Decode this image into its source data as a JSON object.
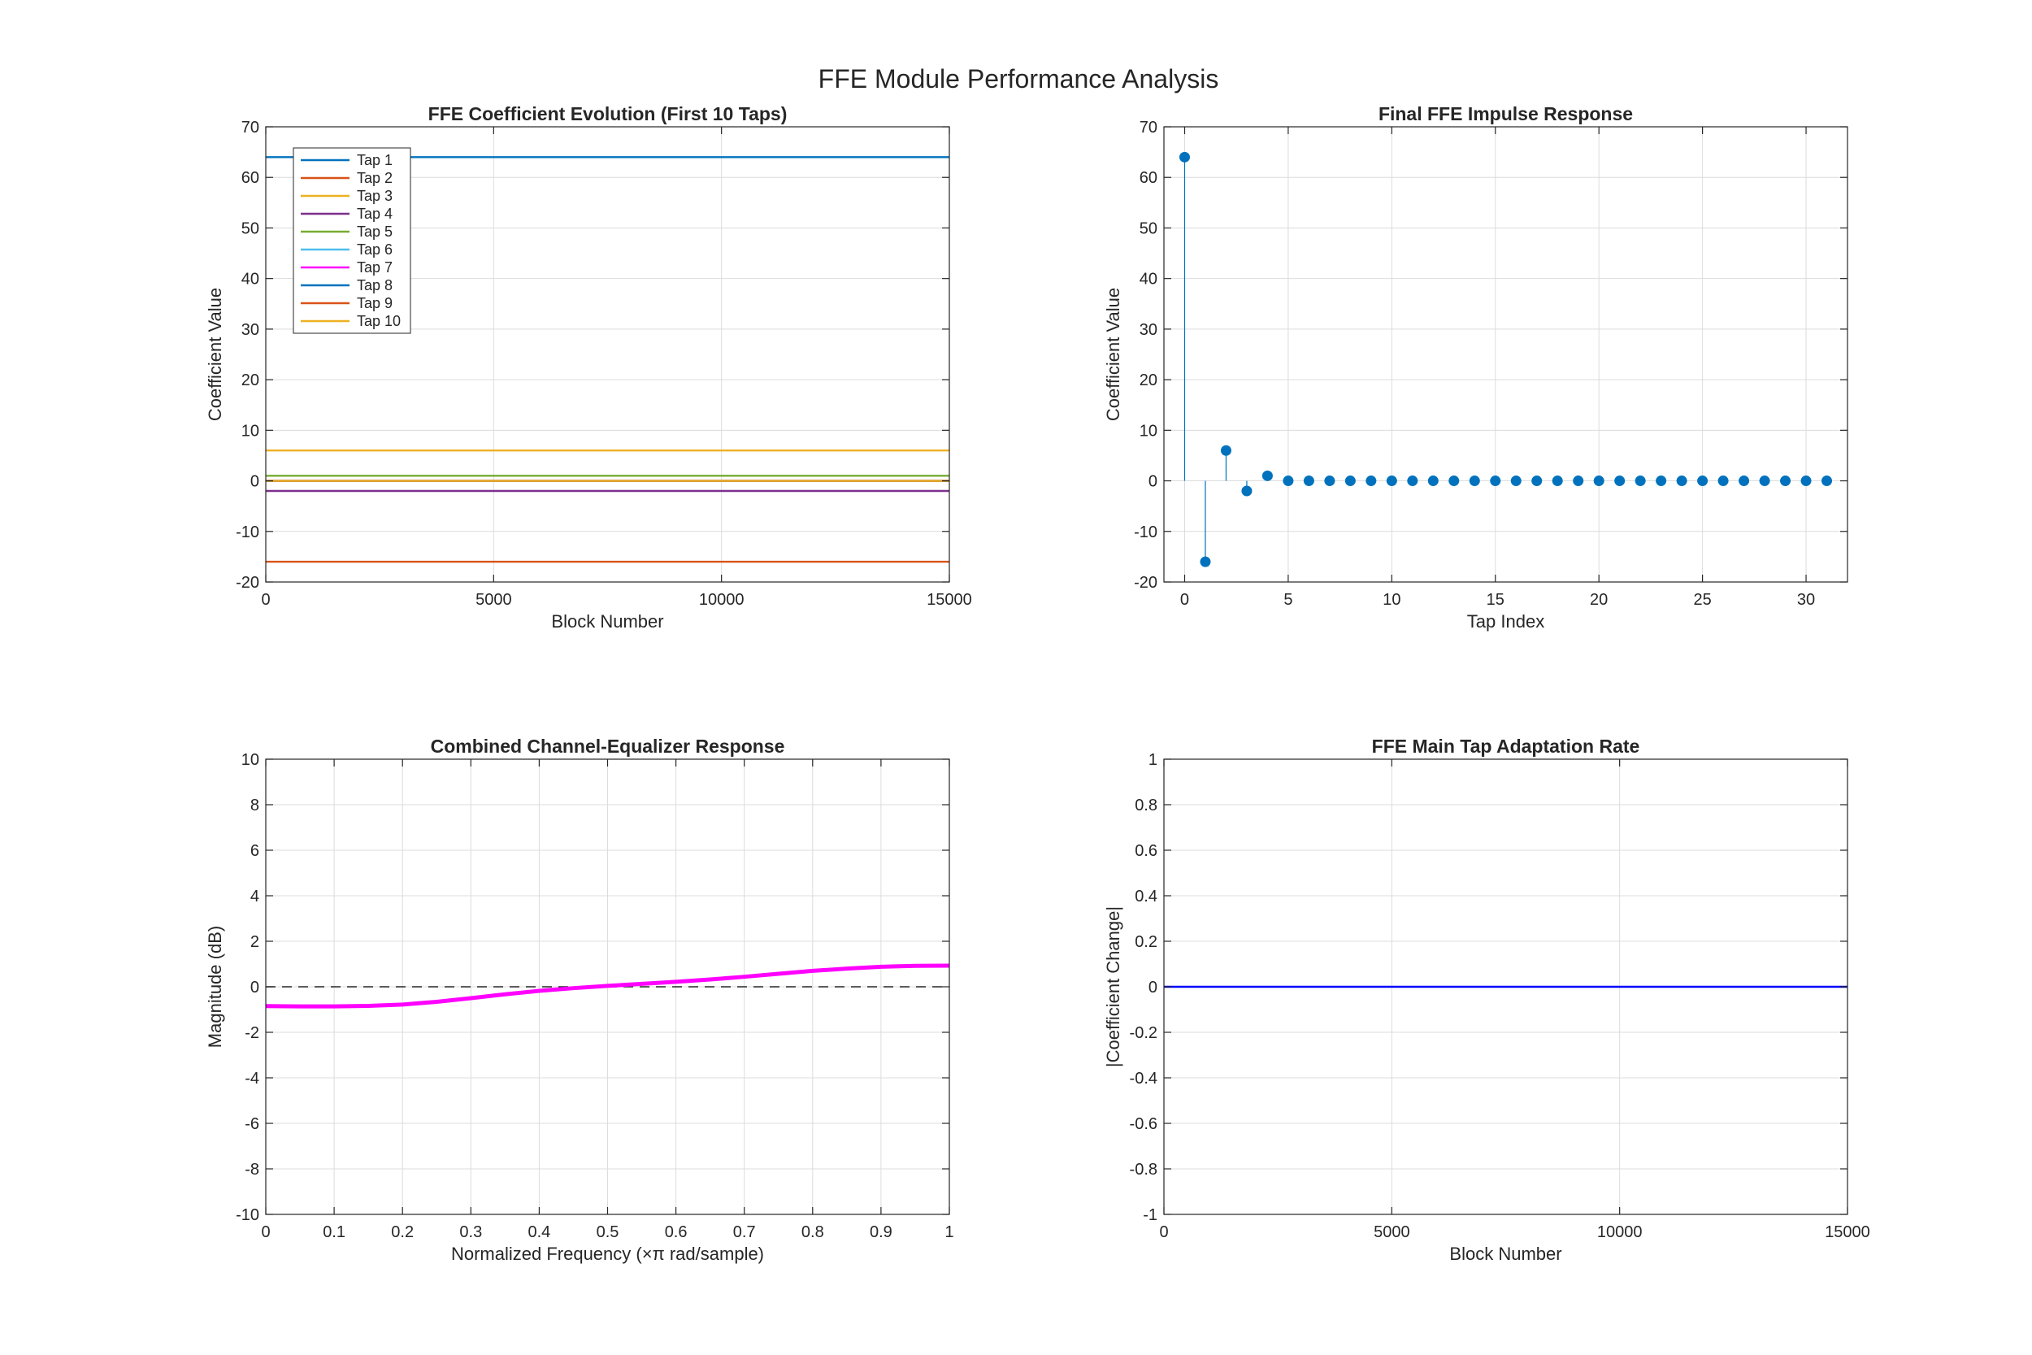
{
  "figure": {
    "title": "FFE Module Performance Analysis"
  },
  "chart_data": [
    {
      "id": "coef-evolution",
      "type": "line",
      "title": "FFE Coefficient Evolution (First 10 Taps)",
      "xlabel": "Block Number",
      "ylabel": "Coefficient Value",
      "xlim": [
        0,
        15000
      ],
      "ylim": [
        -20,
        70
      ],
      "xticks": [
        0,
        5000,
        10000,
        15000
      ],
      "yticks": [
        -20,
        -10,
        0,
        10,
        20,
        30,
        40,
        50,
        60,
        70
      ],
      "grid": true,
      "legend": "top-left",
      "series": [
        {
          "name": "Tap 1",
          "color": "#0072BD",
          "x": [
            0,
            15000
          ],
          "y": [
            64,
            64
          ]
        },
        {
          "name": "Tap 2",
          "color": "#D95319",
          "x": [
            0,
            15000
          ],
          "y": [
            -16,
            -16
          ]
        },
        {
          "name": "Tap 3",
          "color": "#EDB120",
          "x": [
            0,
            15000
          ],
          "y": [
            6,
            6
          ]
        },
        {
          "name": "Tap 4",
          "color": "#7E2F8E",
          "x": [
            0,
            15000
          ],
          "y": [
            -2,
            -2
          ]
        },
        {
          "name": "Tap 5",
          "color": "#77AC30",
          "x": [
            0,
            15000
          ],
          "y": [
            1,
            1
          ]
        },
        {
          "name": "Tap 6",
          "color": "#4DBEEE",
          "x": [
            0,
            15000
          ],
          "y": [
            0,
            0
          ]
        },
        {
          "name": "Tap 7",
          "color": "#FF00FF",
          "x": [
            0,
            15000
          ],
          "y": [
            0,
            0
          ]
        },
        {
          "name": "Tap 8",
          "color": "#0072BD",
          "x": [
            0,
            15000
          ],
          "y": [
            0,
            0
          ]
        },
        {
          "name": "Tap 9",
          "color": "#D95319",
          "x": [
            0,
            15000
          ],
          "y": [
            0,
            0
          ]
        },
        {
          "name": "Tap 10",
          "color": "#EDB120",
          "x": [
            0,
            15000
          ],
          "y": [
            0,
            0
          ]
        }
      ]
    },
    {
      "id": "impulse-response",
      "type": "scatter",
      "style": "stem",
      "title": "Final FFE Impulse Response",
      "xlabel": "Tap Index",
      "ylabel": "Coefficient Value",
      "xlim": [
        -1,
        32
      ],
      "ylim": [
        -20,
        70
      ],
      "xticks": [
        0,
        5,
        10,
        15,
        20,
        25,
        30
      ],
      "yticks": [
        -20,
        -10,
        0,
        10,
        20,
        30,
        40,
        50,
        60,
        70
      ],
      "grid": true,
      "series": [
        {
          "color": "#0072BD",
          "x": [
            0,
            1,
            2,
            3,
            4,
            5,
            6,
            7,
            8,
            9,
            10,
            11,
            12,
            13,
            14,
            15,
            16,
            17,
            18,
            19,
            20,
            21,
            22,
            23,
            24,
            25,
            26,
            27,
            28,
            29,
            30,
            31
          ],
          "y": [
            64,
            -16,
            6,
            -2,
            1,
            0,
            0,
            0,
            0,
            0,
            0,
            0,
            0,
            0,
            0,
            0,
            0,
            0,
            0,
            0,
            0,
            0,
            0,
            0,
            0,
            0,
            0,
            0,
            0,
            0,
            0,
            0
          ]
        }
      ]
    },
    {
      "id": "combined-response",
      "type": "line",
      "title": "Combined Channel-Equalizer Response",
      "xlabel": "Normalized Frequency (×π rad/sample)",
      "ylabel": "Magnitude (dB)",
      "xlim": [
        0,
        1
      ],
      "ylim": [
        -10,
        10
      ],
      "xticks": [
        0,
        0.1,
        0.2,
        0.3,
        0.4,
        0.5,
        0.6,
        0.7,
        0.8,
        0.9,
        1
      ],
      "yticks": [
        -10,
        -8,
        -6,
        -4,
        -2,
        0,
        2,
        4,
        6,
        8,
        10
      ],
      "grid": true,
      "reference_line": {
        "y": 0,
        "style": "dashed",
        "color": "#262626"
      },
      "series": [
        {
          "color": "#FF00FF",
          "x": [
            0,
            0.05,
            0.1,
            0.15,
            0.2,
            0.25,
            0.3,
            0.35,
            0.4,
            0.45,
            0.5,
            0.55,
            0.6,
            0.65,
            0.7,
            0.75,
            0.8,
            0.85,
            0.9,
            0.95,
            1
          ],
          "y": [
            -0.85,
            -0.86,
            -0.86,
            -0.84,
            -0.78,
            -0.66,
            -0.5,
            -0.33,
            -0.18,
            -0.06,
            0.04,
            0.13,
            0.22,
            0.32,
            0.44,
            0.57,
            0.7,
            0.8,
            0.88,
            0.92,
            0.93
          ]
        }
      ]
    },
    {
      "id": "adaptation-rate",
      "type": "line",
      "title": "FFE Main Tap Adaptation Rate",
      "xlabel": "Block Number",
      "ylabel": "|Coefficient Change|",
      "xlim": [
        0,
        15000
      ],
      "ylim": [
        -1,
        1
      ],
      "xticks": [
        0,
        5000,
        10000,
        15000
      ],
      "yticks": [
        -1,
        -0.8,
        -0.6,
        -0.4,
        -0.2,
        0,
        0.2,
        0.4,
        0.6,
        0.8,
        1
      ],
      "grid": true,
      "series": [
        {
          "color": "#0000FF",
          "x": [
            0,
            15000
          ],
          "y": [
            0,
            0
          ]
        }
      ]
    }
  ]
}
